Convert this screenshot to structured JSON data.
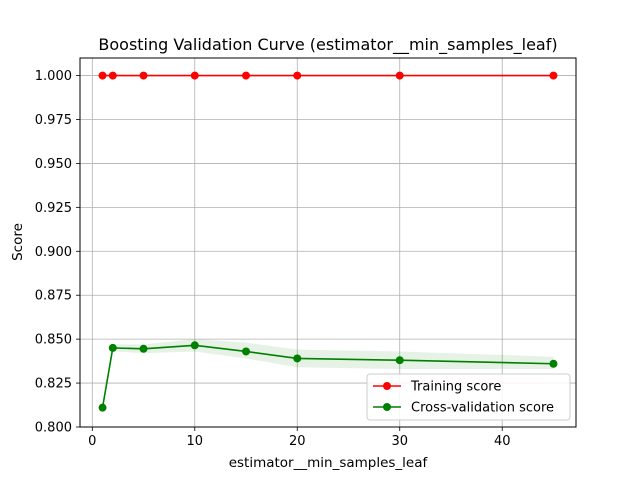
{
  "chart_data": {
    "type": "line",
    "title": "Boosting Validation Curve (estimator__min_samples_leaf)",
    "xlabel": "estimator__min_samples_leaf",
    "ylabel": "Score",
    "xlim": [
      -1.2,
      47.2
    ],
    "ylim": [
      0.8,
      1.01
    ],
    "xticks": [
      0,
      10,
      20,
      30,
      40
    ],
    "yticks": [
      0.8,
      0.825,
      0.85,
      0.875,
      0.9,
      0.925,
      0.95,
      0.975,
      1.0
    ],
    "ytick_labels": [
      "0.800",
      "0.825",
      "0.850",
      "0.875",
      "0.900",
      "0.925",
      "0.950",
      "0.975",
      "1.000"
    ],
    "grid": true,
    "legend_position": "lower-right",
    "x": [
      1,
      2,
      5,
      10,
      15,
      20,
      30,
      45
    ],
    "series": [
      {
        "name": "Training score",
        "color": "#ff0000",
        "values": [
          1.0,
          1.0,
          1.0,
          1.0,
          1.0,
          1.0,
          1.0,
          1.0
        ],
        "band_lower": [
          1.0,
          1.0,
          1.0,
          1.0,
          1.0,
          1.0,
          1.0,
          1.0
        ],
        "band_upper": [
          1.0,
          1.0,
          1.0,
          1.0,
          1.0,
          1.0,
          1.0,
          1.0
        ]
      },
      {
        "name": "Cross-validation score",
        "color": "#008000",
        "values": [
          0.811,
          0.845,
          0.8445,
          0.8465,
          0.843,
          0.839,
          0.838,
          0.836
        ],
        "band_lower": [
          0.81,
          0.843,
          0.842,
          0.843,
          0.839,
          0.834,
          0.833,
          0.833
        ],
        "band_upper": [
          0.812,
          0.847,
          0.847,
          0.85,
          0.848,
          0.844,
          0.843,
          0.84
        ]
      }
    ]
  }
}
